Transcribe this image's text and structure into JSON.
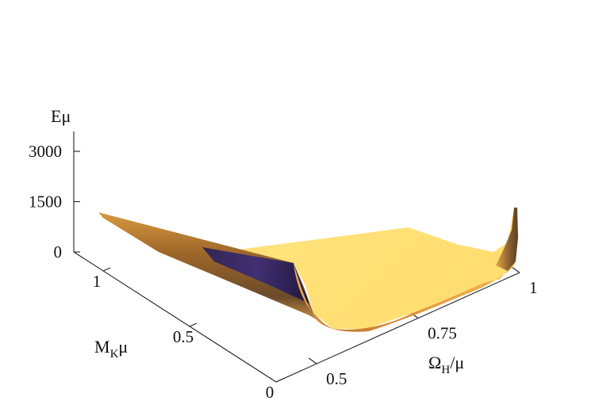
{
  "chart_data": {
    "type": "surface",
    "z_label": "Eμ",
    "y_label": {
      "main": "M",
      "sub": "K",
      "tail": "μ"
    },
    "x_label": {
      "main": "Ω",
      "sub": "H",
      "tail": "/μ"
    },
    "z_ticks": [
      {
        "value": 0,
        "label": "0"
      },
      {
        "value": 1500,
        "label": "1500"
      },
      {
        "value": 3000,
        "label": "3000"
      }
    ],
    "y_ticks": [
      {
        "value": 0,
        "label": "0"
      },
      {
        "value": 0.5,
        "label": "0.5"
      },
      {
        "value": 1,
        "label": "1"
      }
    ],
    "x_ticks": [
      {
        "value": 0.5,
        "label": "0.5"
      },
      {
        "value": 0.75,
        "label": "0.75"
      },
      {
        "value": 1,
        "label": "1"
      }
    ],
    "z_range": [
      0,
      3400
    ],
    "y_range": [
      0,
      1.1
    ],
    "x_range": [
      0.4,
      1.0
    ],
    "colormap": [
      "#14143a",
      "#3a1f6e",
      "#7a4a2a",
      "#c07a2c",
      "#f0b040",
      "#ffe880"
    ],
    "surface_samples": [
      {
        "omega": 0.4,
        "mk": 1.05,
        "E": 1100
      },
      {
        "omega": 0.7,
        "mk": 0.6,
        "E": 180
      },
      {
        "omega": 0.85,
        "mk": 0.2,
        "E": 60
      },
      {
        "omega": 1.0,
        "mk": 0.95,
        "E": 1350
      }
    ]
  }
}
